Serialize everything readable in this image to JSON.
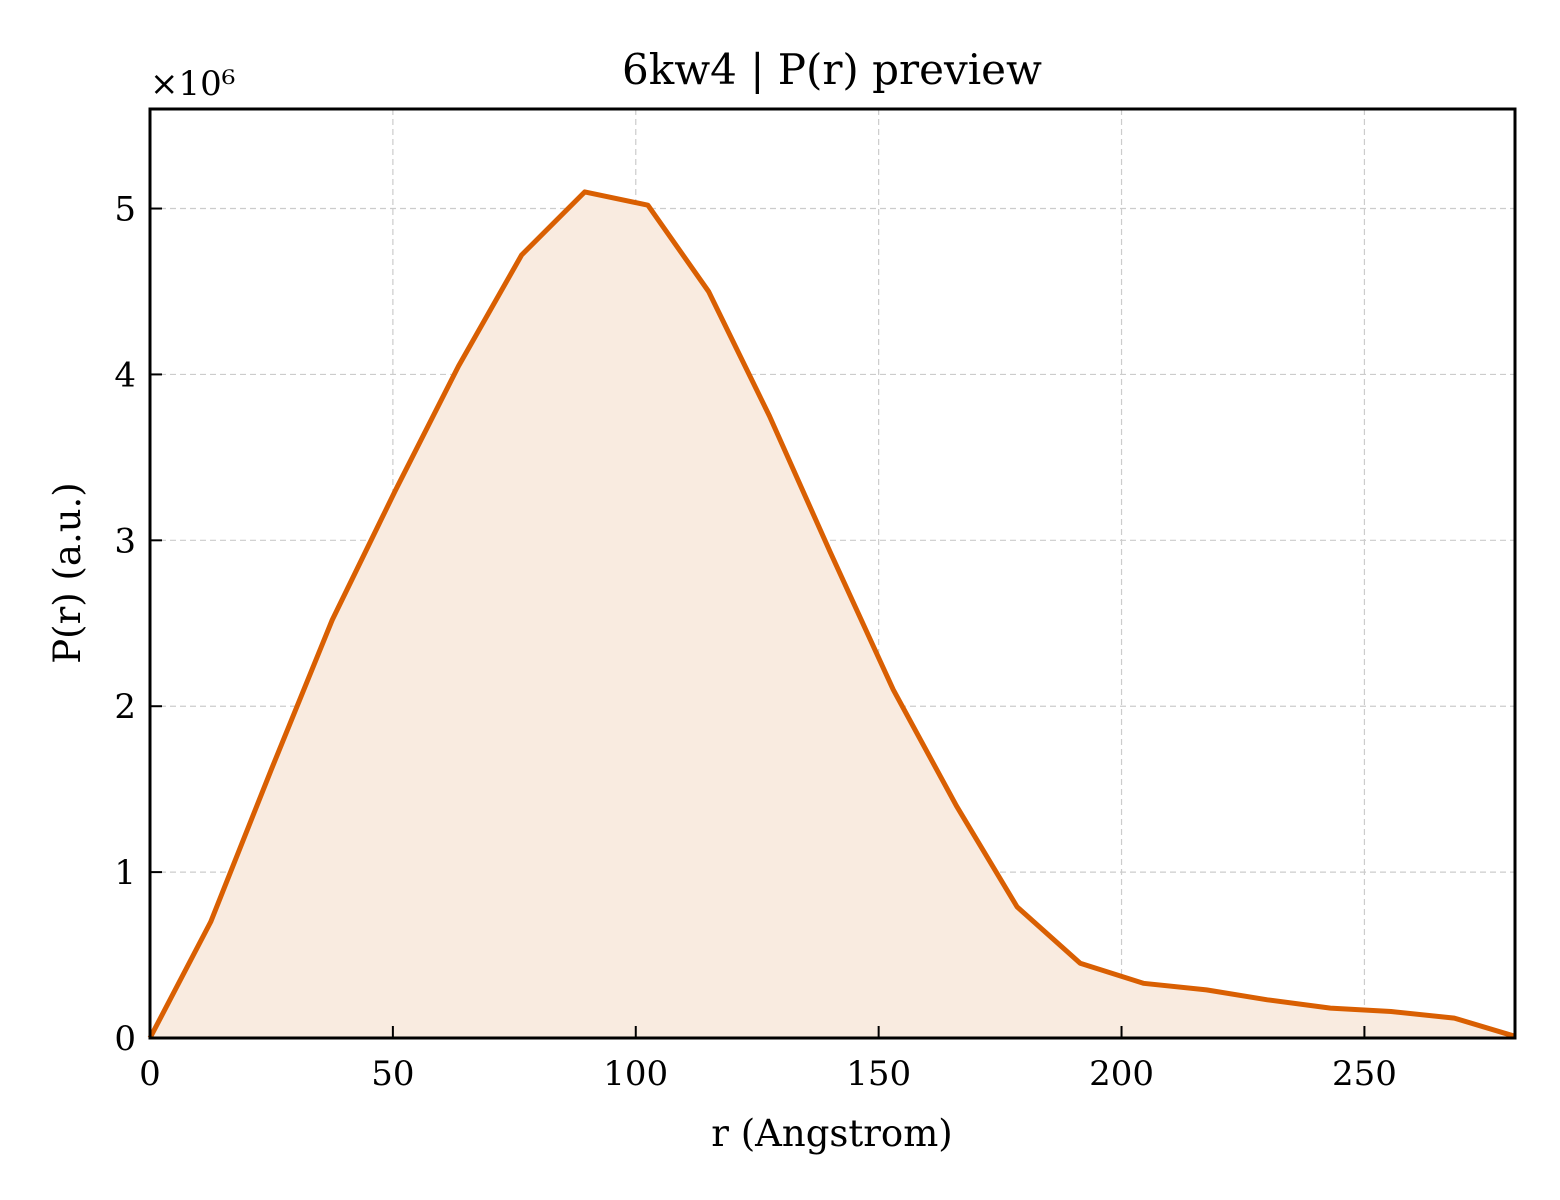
{
  "chart_data": {
    "type": "area",
    "title": "6kw4 | P(r) preview",
    "xlabel": "r (Angstrom)",
    "ylabel": "P(r) (a.u.)",
    "y_multiplier_label": "×10⁶",
    "xlim": [
      0,
      281
    ],
    "ylim": [
      0,
      5.6
    ],
    "x_ticks": [
      0,
      50,
      100,
      150,
      200,
      250
    ],
    "y_ticks": [
      0,
      1,
      2,
      3,
      4,
      5
    ],
    "grid": true,
    "series": [
      {
        "x": [
          0,
          12.5,
          25,
          37.5,
          50.5,
          63.5,
          76.5,
          89.5,
          102.5,
          115,
          127.5,
          140,
          153,
          166,
          178.5,
          191.5,
          204.5,
          217.5,
          230,
          243,
          255.5,
          268.5,
          281
        ],
        "values": [
          0,
          0.7,
          1.62,
          2.52,
          3.3,
          4.05,
          4.72,
          5.1,
          5.02,
          4.5,
          3.75,
          2.93,
          2.1,
          1.4,
          0.79,
          0.45,
          0.33,
          0.29,
          0.23,
          0.18,
          0.16,
          0.12,
          0.01
        ]
      }
    ],
    "colors": {
      "line": "#d95f02",
      "fill": "#f9ebe0"
    }
  }
}
